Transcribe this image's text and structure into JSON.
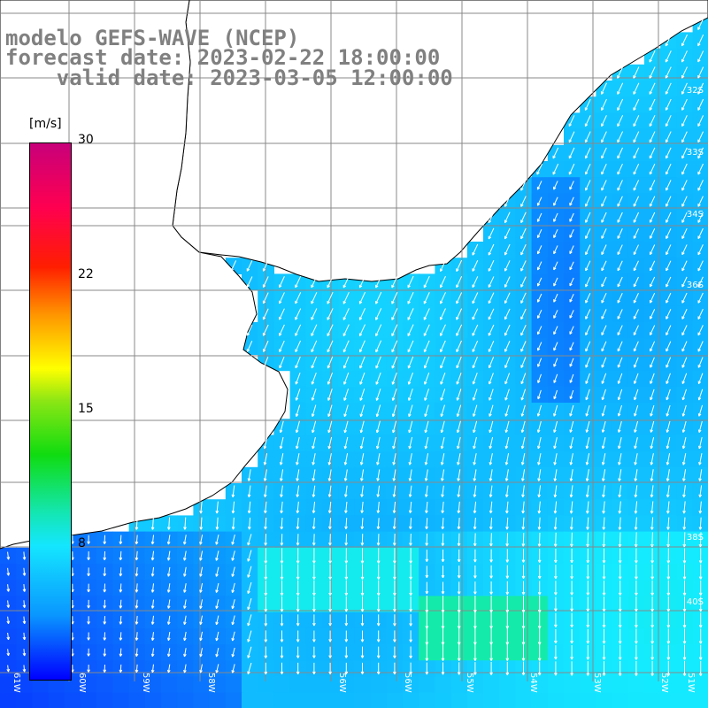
{
  "title": {
    "model": "modelo GEFS-WAVE (NCEP)",
    "forecast": "forecast date: 2023-02-22 18:00:00",
    "valid": "    valid date: 2023-03-05 12:00:00"
  },
  "colorbar": {
    "unit": "[m/s]",
    "ticks": [
      "30",
      "22",
      "15",
      "8"
    ],
    "min": 0,
    "max": 30
  },
  "lat_labels": [
    "32S",
    "33S",
    "34S",
    "36S",
    "38S",
    "40S"
  ],
  "lon_labels": [
    "61W",
    "60W",
    "59W",
    "58W",
    "56W",
    "56W",
    "55W",
    "54W",
    "53W",
    "52W",
    "51W"
  ],
  "wind_field": {
    "dominant_direction": "toward south / south-west",
    "speed_range_ms": [
      2,
      10
    ]
  },
  "colors": {
    "land": "#ffffff",
    "grid": "#888888",
    "coast": "#000000",
    "arrows": "#ffffff",
    "title": "#808080"
  }
}
